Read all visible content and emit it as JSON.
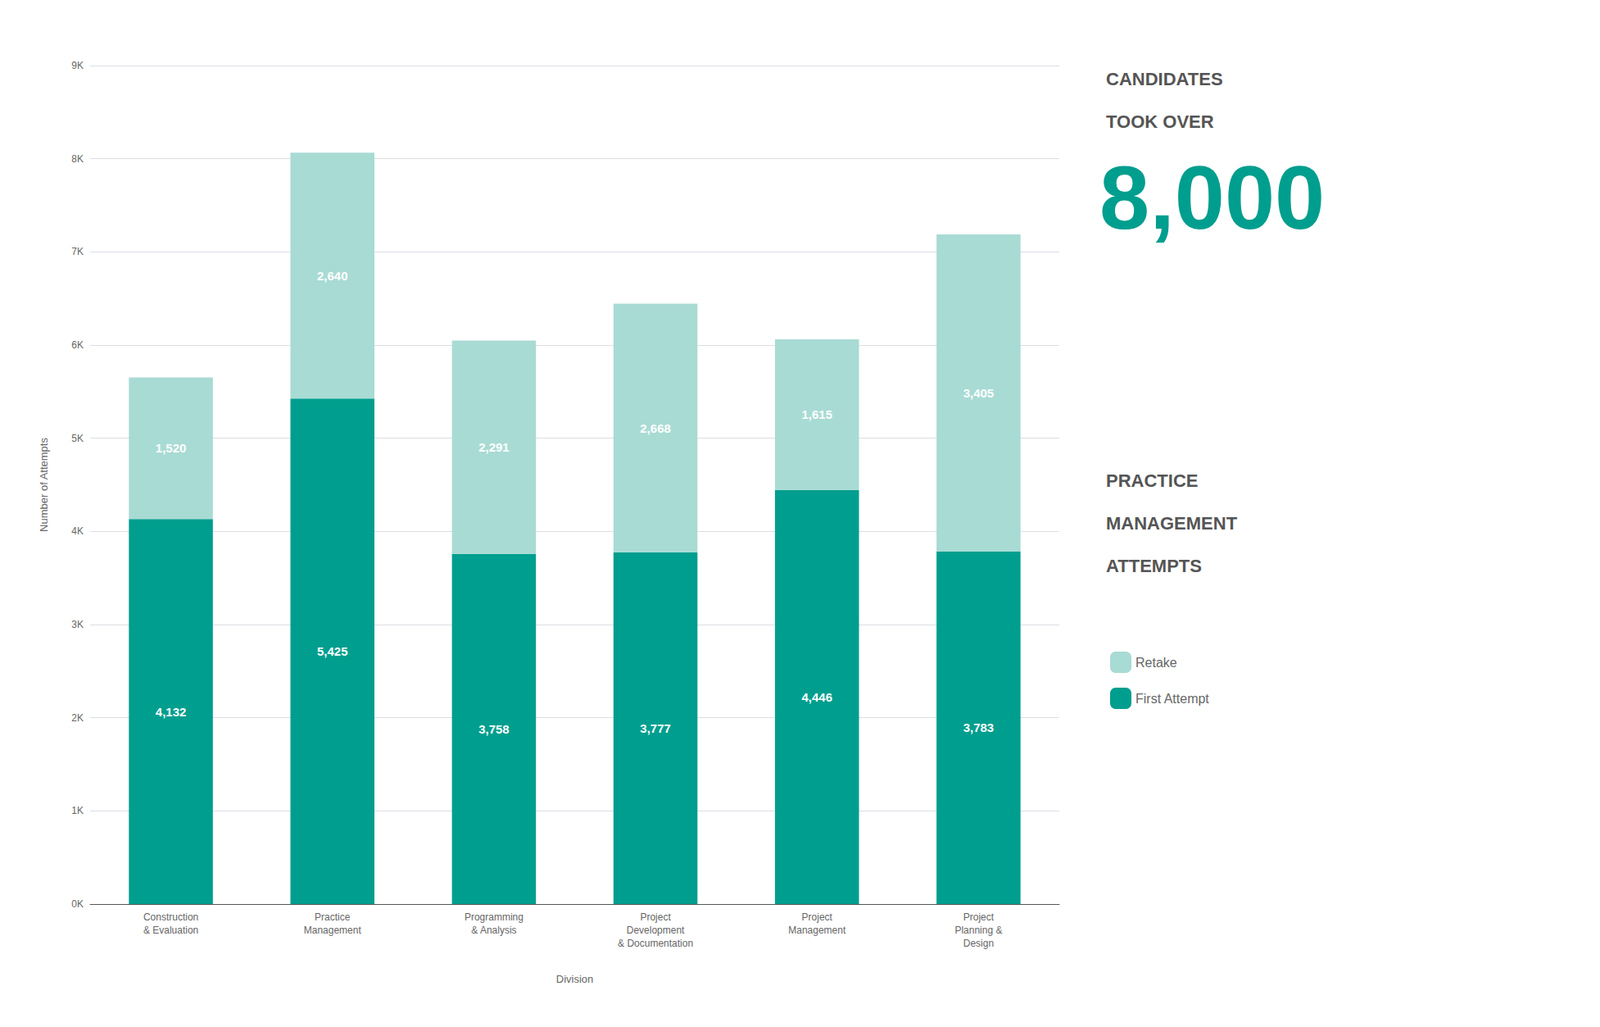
{
  "chart_data": {
    "type": "bar",
    "categories": [
      "Construction\n& Evaluation",
      "Practice\nManagement",
      "Programming\n& Analysis",
      "Project\nDevelopment\n& Documentation",
      "Project\nManagement",
      "Project\nPlanning &\nDesign"
    ],
    "series": [
      {
        "name": "First Attempt",
        "color": "#009e8e",
        "values": [
          4132,
          5425,
          3758,
          3777,
          4446,
          3783
        ],
        "value_labels": [
          "4,132",
          "5,425",
          "3,758",
          "3,777",
          "4,446",
          "3,783"
        ]
      },
      {
        "name": "Retake",
        "color": "#a8dbd4",
        "values": [
          1520,
          2640,
          2291,
          2668,
          1615,
          3405
        ],
        "value_labels": [
          "1,520",
          "2,640",
          "2,291",
          "2,668",
          "1,615",
          "3,405"
        ]
      }
    ],
    "stacked": true,
    "data_labels": true,
    "xlabel": "Division",
    "ylabel": "Number of Attempts",
    "ylim": [
      0,
      9000
    ],
    "yticks": [
      {
        "value": 0,
        "label": "0K"
      },
      {
        "value": 1000,
        "label": "1K"
      },
      {
        "value": 2000,
        "label": "2K"
      },
      {
        "value": 3000,
        "label": "3K"
      },
      {
        "value": 4000,
        "label": "4K"
      },
      {
        "value": 5000,
        "label": "5K"
      },
      {
        "value": 6000,
        "label": "6K"
      },
      {
        "value": 7000,
        "label": "7K"
      },
      {
        "value": 8000,
        "label": "8K"
      },
      {
        "value": 9000,
        "label": "9K"
      }
    ],
    "grid": true,
    "legend": "right",
    "annotations": [
      "CANDIDATES\nTOOK OVER",
      "8,000",
      "PRACTICE\nMANAGEMENT\nATTEMPTS"
    ]
  }
}
